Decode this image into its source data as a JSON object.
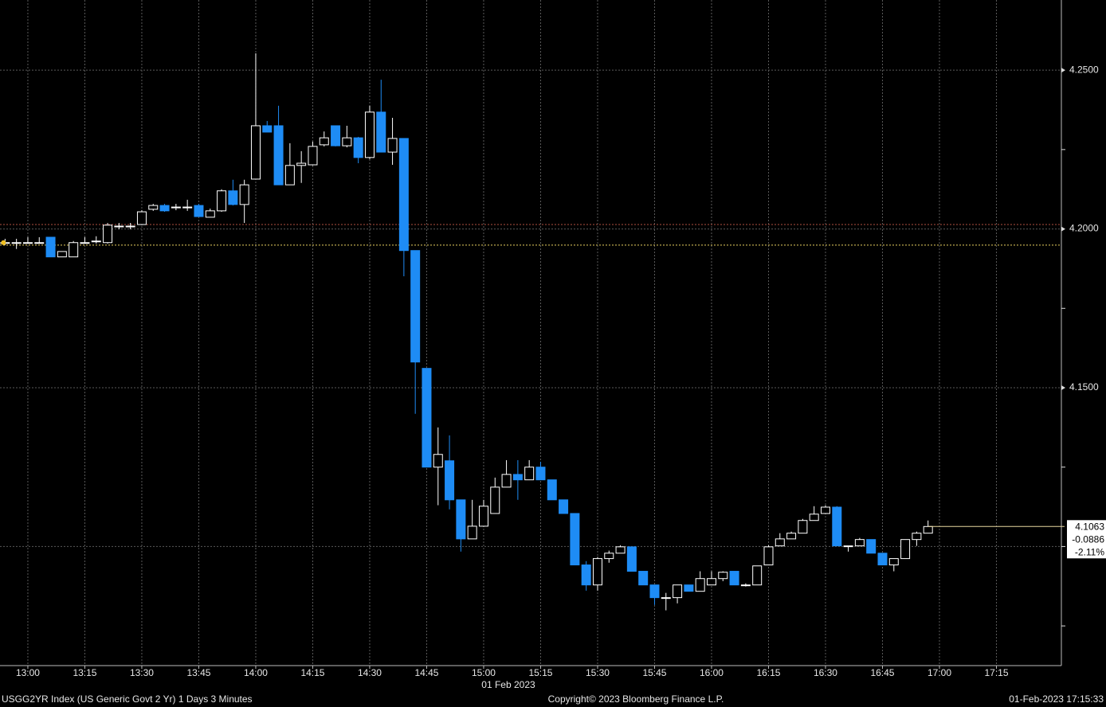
{
  "chart_data": {
    "type": "candlestick",
    "x": [
      "12:54",
      "12:57",
      "13:00",
      "13:03",
      "13:06",
      "13:09",
      "13:12",
      "13:15",
      "13:18",
      "13:21",
      "13:24",
      "13:27",
      "13:30",
      "13:33",
      "13:36",
      "13:39",
      "13:42",
      "13:45",
      "13:48",
      "13:51",
      "13:54",
      "13:57",
      "14:00",
      "14:03",
      "14:06",
      "14:09",
      "14:12",
      "14:15",
      "14:18",
      "14:21",
      "14:24",
      "14:27",
      "14:30",
      "14:33",
      "14:36",
      "14:39",
      "14:42",
      "14:45",
      "14:48",
      "14:51",
      "14:54",
      "14:57",
      "15:00",
      "15:03",
      "15:06",
      "15:09",
      "15:12",
      "15:15",
      "15:18",
      "15:21",
      "15:24",
      "15:27",
      "15:30",
      "15:33",
      "15:36",
      "15:39",
      "15:42",
      "15:45",
      "15:48",
      "15:51",
      "15:54",
      "15:57",
      "16:00",
      "16:03",
      "16:06",
      "16:09",
      "16:12",
      "16:15",
      "16:18",
      "16:21",
      "16:24",
      "16:27",
      "16:30",
      "16:33",
      "16:36",
      "16:39",
      "16:42",
      "16:45",
      "16:48",
      "16:51",
      "16:54",
      "16:57"
    ],
    "open": [
      4.1957,
      4.1957,
      4.1957,
      4.1957,
      4.1974,
      4.1912,
      4.1912,
      4.1957,
      4.1962,
      4.1957,
      4.2009,
      4.2009,
      4.2014,
      4.2062,
      4.2074,
      4.2069,
      4.2069,
      4.2074,
      4.2037,
      4.2057,
      4.212,
      4.2077,
      4.2157,
      4.2325,
      4.2325,
      4.2139,
      4.22,
      4.2202,
      4.2265,
      4.2325,
      4.2262,
      4.2287,
      4.2225,
      4.2368,
      4.2242,
      4.2285,
      4.1932,
      4.1561,
      4.125,
      4.127,
      4.1147,
      4.1024,
      4.1064,
      4.1104,
      4.1187,
      4.1227,
      4.121,
      4.125,
      4.121,
      4.1147,
      4.1104,
      4.0942,
      4.0879,
      4.0962,
      4.0979,
      4.0999,
      4.0922,
      4.0879,
      4.0839,
      4.0839,
      4.0879,
      4.0859,
      4.0879,
      4.0899,
      4.0922,
      4.0879,
      4.0879,
      4.0942,
      4.1002,
      4.1024,
      4.1042,
      4.1082,
      4.1104,
      4.1124,
      4.1002,
      4.1002,
      4.1022,
      4.0979,
      4.0942,
      4.0962,
      4.1022,
      4.1042
    ],
    "high": [
      4.1969,
      4.1969,
      4.1974,
      4.1974,
      4.1974,
      4.1929,
      4.1962,
      4.1974,
      4.1977,
      4.2019,
      4.2019,
      4.2019,
      4.2059,
      4.2079,
      4.2079,
      4.2079,
      4.2092,
      4.2079,
      4.2064,
      4.2125,
      4.2155,
      4.2155,
      4.2553,
      4.234,
      4.2388,
      4.227,
      4.2245,
      4.2275,
      4.2307,
      4.2325,
      4.2325,
      4.229,
      4.2388,
      4.247,
      4.235,
      4.2285,
      4.1932,
      4.1561,
      4.1375,
      4.135,
      4.1147,
      4.1147,
      4.1147,
      4.1217,
      4.1272,
      4.1272,
      4.1272,
      4.1267,
      4.121,
      4.1147,
      4.1104,
      4.0954,
      4.0967,
      4.0987,
      4.1004,
      4.0999,
      4.0922,
      4.0879,
      4.0854,
      4.0879,
      4.0879,
      4.0922,
      4.0922,
      4.0922,
      4.0922,
      4.0884,
      4.0939,
      4.1004,
      4.1042,
      4.1047,
      4.1087,
      4.1127,
      4.113,
      4.1127,
      4.1002,
      4.1027,
      4.1022,
      4.0979,
      4.0962,
      4.1022,
      4.1047,
      4.1082
    ],
    "low": [
      4.1949,
      4.1937,
      4.1954,
      4.1954,
      4.1912,
      4.1912,
      4.1912,
      4.1954,
      4.1954,
      4.1954,
      4.1999,
      4.1999,
      4.2012,
      4.2057,
      4.2054,
      4.2059,
      4.2057,
      4.2039,
      4.2037,
      4.2054,
      4.2074,
      4.2019,
      4.2157,
      4.2305,
      4.2139,
      4.2139,
      4.2145,
      4.22,
      4.226,
      4.226,
      4.2257,
      4.2207,
      4.222,
      4.2242,
      4.2202,
      4.1851,
      4.1418,
      4.125,
      4.113,
      4.1117,
      4.0984,
      4.1024,
      4.1062,
      4.1104,
      4.1187,
      4.1147,
      4.121,
      4.121,
      4.1147,
      4.1104,
      4.0942,
      4.0861,
      4.0861,
      4.0949,
      4.0979,
      4.0922,
      4.0879,
      4.0816,
      4.0799,
      4.0821,
      4.0859,
      4.0859,
      4.0879,
      4.0891,
      4.0879,
      4.0874,
      4.0879,
      4.0942,
      4.1002,
      4.1024,
      4.1042,
      4.1082,
      4.1102,
      4.1002,
      4.0984,
      4.1002,
      4.0979,
      4.0942,
      4.0922,
      4.0962,
      4.1002,
      4.1042
    ],
    "close": [
      4.1957,
      4.1957,
      4.1957,
      4.1957,
      4.1912,
      4.1929,
      4.1957,
      4.1957,
      4.1962,
      4.2012,
      4.2009,
      4.2009,
      4.2054,
      4.2074,
      4.2057,
      4.2069,
      4.2069,
      4.2039,
      4.2057,
      4.212,
      4.2077,
      4.2139,
      4.2325,
      4.2305,
      4.2139,
      4.22,
      4.2207,
      4.226,
      4.2287,
      4.2262,
      4.2287,
      4.2225,
      4.2368,
      4.2242,
      4.2285,
      4.1932,
      4.1581,
      4.125,
      4.129,
      4.1147,
      4.1024,
      4.1064,
      4.1127,
      4.1187,
      4.1227,
      4.121,
      4.125,
      4.121,
      4.1147,
      4.1104,
      4.0942,
      4.0879,
      4.0962,
      4.0979,
      4.0999,
      4.0922,
      4.0879,
      4.0839,
      4.0839,
      4.0879,
      4.0859,
      4.0899,
      4.0899,
      4.0919,
      4.0879,
      4.0879,
      4.0939,
      4.0999,
      4.1024,
      4.1042,
      4.1082,
      4.1102,
      4.1124,
      4.1002,
      4.1002,
      4.1022,
      4.0979,
      4.0942,
      4.0962,
      4.1022,
      4.1042,
      4.1063
    ],
    "up_color": "#ffffff",
    "down_color": "#1e8cf5",
    "xlim": [
      "12:52:40",
      "17:32:06"
    ],
    "xticks": [
      "13:00",
      "13:15",
      "13:30",
      "13:45",
      "14:00",
      "14:15",
      "14:30",
      "14:45",
      "15:00",
      "15:15",
      "15:30",
      "15:45",
      "16:00",
      "16:15",
      "16:30",
      "16:45",
      "17:00",
      "17:15"
    ],
    "date_label": "01 Feb 2023",
    "ylim": [
      4.0625,
      4.2721
    ],
    "yticks": [
      {
        "value": 4.25,
        "label": "4.2500"
      },
      {
        "value": 4.2,
        "label": "4.2000"
      },
      {
        "value": 4.15,
        "label": "4.1500"
      }
    ],
    "yticks_minor": [
      4.225,
      4.175,
      4.125,
      4.1,
      4.075
    ],
    "ygrid": [
      4.25,
      4.2,
      4.15,
      4.1
    ],
    "grid": true,
    "reference_lines": [
      {
        "value": 4.1949,
        "color": "#e8d060"
      },
      {
        "value": 4.2014,
        "color": "#b05040"
      }
    ],
    "last": {
      "value": 4.1063,
      "label": "4.1063"
    },
    "change": {
      "value": -0.0886,
      "label": "-0.0886"
    },
    "change_pct": {
      "value": -2.11,
      "label": "-2.11%"
    },
    "footer_left": "USGG2YR Index (US Generic Govt 2 Yr) 1 Days 3 Minutes",
    "footer_center": "Copyright© 2023 Bloomberg Finance L.P.",
    "footer_right": "01-Feb-2023 17:15:33"
  }
}
